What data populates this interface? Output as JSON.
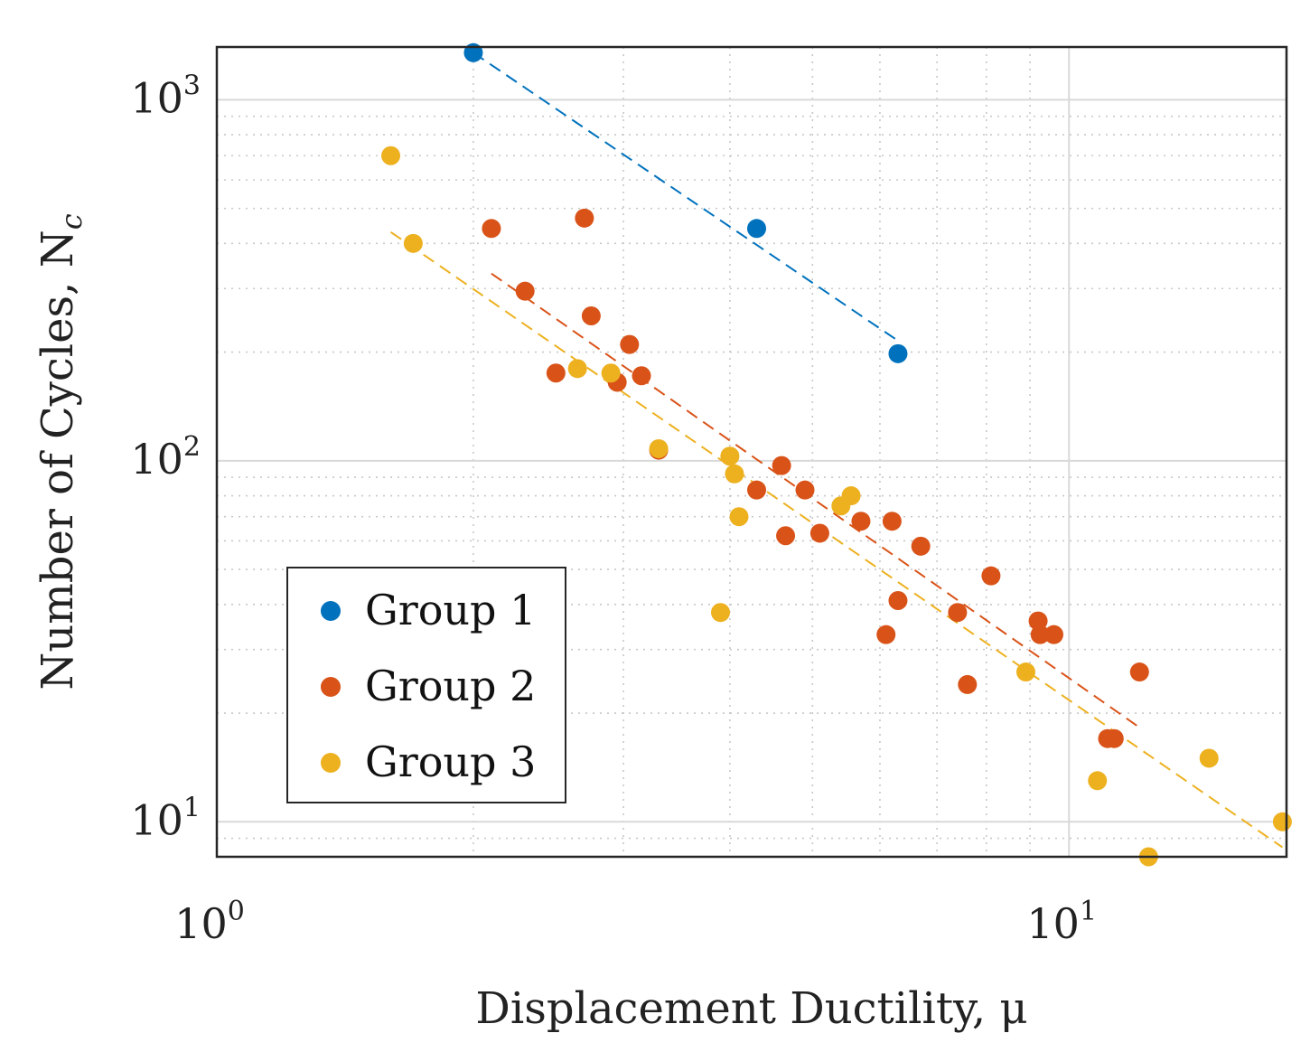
{
  "chart_data": {
    "type": "scatter",
    "x_scale": "log",
    "y_scale": "log",
    "xlim": [
      1,
      18
    ],
    "ylim": [
      8,
      1400
    ],
    "grid": true,
    "legend_position": "bottom-left",
    "xlabel": "Displacement Ductility, μ",
    "ylabel": "Number of Cycles, N_c",
    "x_ticks": [
      {
        "value": 1,
        "base": "10",
        "exp": "0"
      },
      {
        "value": 10,
        "base": "10",
        "exp": "1"
      }
    ],
    "y_ticks": [
      {
        "value": 10,
        "base": "10",
        "exp": "1"
      },
      {
        "value": 100,
        "base": "10",
        "exp": "2"
      },
      {
        "value": 1000,
        "base": "10",
        "exp": "3"
      }
    ],
    "series": [
      {
        "name": "Group 1",
        "color": "#0072BD",
        "points": [
          [
            2.0,
            1350
          ],
          [
            4.3,
            440
          ],
          [
            6.3,
            198
          ]
        ],
        "trend": [
          [
            2.0,
            1350
          ],
          [
            6.3,
            215
          ]
        ]
      },
      {
        "name": "Group 2",
        "color": "#D95319",
        "points": [
          [
            2.1,
            440
          ],
          [
            2.3,
            295
          ],
          [
            2.5,
            175
          ],
          [
            2.7,
            470
          ],
          [
            2.75,
            252
          ],
          [
            2.95,
            165
          ],
          [
            3.05,
            210
          ],
          [
            3.15,
            172
          ],
          [
            3.3,
            107
          ],
          [
            4.3,
            83
          ],
          [
            4.6,
            97
          ],
          [
            4.65,
            62
          ],
          [
            4.9,
            83
          ],
          [
            5.1,
            63
          ],
          [
            5.7,
            68
          ],
          [
            6.1,
            33
          ],
          [
            6.2,
            68
          ],
          [
            6.3,
            41
          ],
          [
            6.7,
            58
          ],
          [
            7.4,
            38
          ],
          [
            7.6,
            24
          ],
          [
            8.1,
            48
          ],
          [
            9.2,
            36
          ],
          [
            9.25,
            33
          ],
          [
            9.6,
            33
          ],
          [
            11.1,
            17
          ],
          [
            11.3,
            17
          ],
          [
            12.1,
            26
          ]
        ],
        "trend": [
          [
            2.1,
            330
          ],
          [
            12.2,
            18
          ]
        ]
      },
      {
        "name": "Group 3",
        "color": "#EDB120",
        "points": [
          [
            1.6,
            700
          ],
          [
            1.7,
            400
          ],
          [
            2.65,
            180
          ],
          [
            2.9,
            175
          ],
          [
            3.3,
            108
          ],
          [
            3.9,
            38
          ],
          [
            4.0,
            103
          ],
          [
            4.05,
            92
          ],
          [
            4.1,
            70
          ],
          [
            5.4,
            75
          ],
          [
            5.55,
            80
          ],
          [
            8.9,
            26
          ],
          [
            10.8,
            13
          ],
          [
            12.4,
            8
          ],
          [
            14.6,
            15
          ],
          [
            17.8,
            10
          ]
        ],
        "trend": [
          [
            1.6,
            430
          ],
          [
            17.8,
            8.5
          ]
        ]
      }
    ]
  }
}
